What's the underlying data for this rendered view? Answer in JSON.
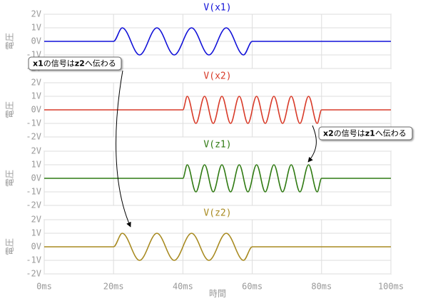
{
  "chart_data": [
    {
      "type": "line",
      "title": "V(x1)",
      "ylabel": "電圧",
      "color": "#1010d8",
      "x": [
        0,
        20,
        22.5,
        25,
        27.5,
        30,
        32.5,
        35,
        37.5,
        40,
        42.5,
        45,
        47.5,
        50,
        52.5,
        55,
        57.5,
        60,
        100
      ],
      "values": [
        0,
        0,
        1,
        0,
        -1,
        0,
        1,
        0,
        -1,
        0,
        1,
        0,
        -1,
        0,
        1,
        0,
        -1,
        0,
        0
      ],
      "ylim": [
        -2,
        2
      ],
      "yticks": [
        {
          "value": -2,
          "label": "-2V"
        },
        {
          "value": -1,
          "label": "-1V"
        },
        {
          "value": 0,
          "label": "0V"
        },
        {
          "value": 1,
          "label": "1V"
        },
        {
          "value": 2,
          "label": "2V"
        }
      ],
      "grid": true
    },
    {
      "type": "line",
      "title": "V(x2)",
      "ylabel": "電圧",
      "color": "#d83a28",
      "x": [
        0,
        40,
        41.25,
        42.5,
        43.75,
        45,
        46.25,
        47.5,
        48.75,
        50,
        51.25,
        52.5,
        53.75,
        55,
        56.25,
        57.5,
        58.75,
        60,
        61.25,
        62.5,
        63.75,
        65,
        66.25,
        67.5,
        68.75,
        70,
        71.25,
        72.5,
        73.75,
        75,
        76.25,
        77.5,
        78.75,
        80,
        100
      ],
      "values": [
        0,
        0,
        1,
        0,
        -1,
        0,
        1,
        0,
        -1,
        0,
        1,
        0,
        -1,
        0,
        1,
        0,
        -1,
        0,
        1,
        0,
        -1,
        0,
        1,
        0,
        -1,
        0,
        1,
        0,
        -1,
        0,
        1,
        0,
        -1,
        0,
        0
      ],
      "ylim": [
        -2,
        2
      ],
      "yticks": [
        {
          "value": -2,
          "label": "-2V"
        },
        {
          "value": -1,
          "label": "-1V"
        },
        {
          "value": 0,
          "label": "0V"
        },
        {
          "value": 1,
          "label": "1V"
        },
        {
          "value": 2,
          "label": "2V"
        }
      ],
      "grid": true
    },
    {
      "type": "line",
      "title": "V(z1)",
      "ylabel": "電圧",
      "color": "#2f7a12",
      "x": [
        0,
        40,
        41.25,
        42.5,
        43.75,
        45,
        46.25,
        47.5,
        48.75,
        50,
        51.25,
        52.5,
        53.75,
        55,
        56.25,
        57.5,
        58.75,
        60,
        61.25,
        62.5,
        63.75,
        65,
        66.25,
        67.5,
        68.75,
        70,
        71.25,
        72.5,
        73.75,
        75,
        76.25,
        77.5,
        78.75,
        80,
        100
      ],
      "values": [
        0,
        0,
        1,
        0,
        -1,
        0,
        1,
        0,
        -1,
        0,
        1,
        0,
        -1,
        0,
        1,
        0,
        -1,
        0,
        1,
        0,
        -1,
        0,
        1,
        0,
        -1,
        0,
        1,
        0,
        -1,
        0,
        1,
        0,
        -1,
        0,
        0
      ],
      "ylim": [
        -2,
        2
      ],
      "yticks": [
        {
          "value": -2,
          "label": "-2V"
        },
        {
          "value": -1,
          "label": "-1V"
        },
        {
          "value": 0,
          "label": "0V"
        },
        {
          "value": 1,
          "label": "1V"
        },
        {
          "value": 2,
          "label": "2V"
        }
      ],
      "grid": true
    },
    {
      "type": "line",
      "title": "V(z2)",
      "ylabel": "電圧",
      "color": "#a88a20",
      "x": [
        0,
        20,
        22.5,
        25,
        27.5,
        30,
        32.5,
        35,
        37.5,
        40,
        42.5,
        45,
        47.5,
        50,
        52.5,
        55,
        57.5,
        60,
        100
      ],
      "values": [
        0,
        0,
        1,
        0,
        -1,
        0,
        1,
        0,
        -1,
        0,
        1,
        0,
        -1,
        0,
        1,
        0,
        -1,
        0,
        0
      ],
      "ylim": [
        -2,
        2
      ],
      "yticks": [
        {
          "value": -2,
          "label": "-2V"
        },
        {
          "value": -1,
          "label": "-1V"
        },
        {
          "value": 0,
          "label": "0V"
        },
        {
          "value": 1,
          "label": "1V"
        },
        {
          "value": 2,
          "label": "2V"
        }
      ],
      "grid": true,
      "xlabel": "時間",
      "xlim": [
        0,
        100
      ],
      "xticks": [
        {
          "value": 0,
          "label": "0ms"
        },
        {
          "value": 20,
          "label": "20ms"
        },
        {
          "value": 40,
          "label": "40ms"
        },
        {
          "value": 60,
          "label": "60ms"
        },
        {
          "value": 80,
          "label": "80ms"
        },
        {
          "value": 100,
          "label": "100ms"
        }
      ]
    }
  ],
  "annotations": [
    {
      "parts": [
        "x1",
        "の信号は",
        "z2",
        "へ伝わる"
      ]
    },
    {
      "parts": [
        "x2",
        "の信号は",
        "z1",
        "へ伝わる"
      ]
    }
  ]
}
